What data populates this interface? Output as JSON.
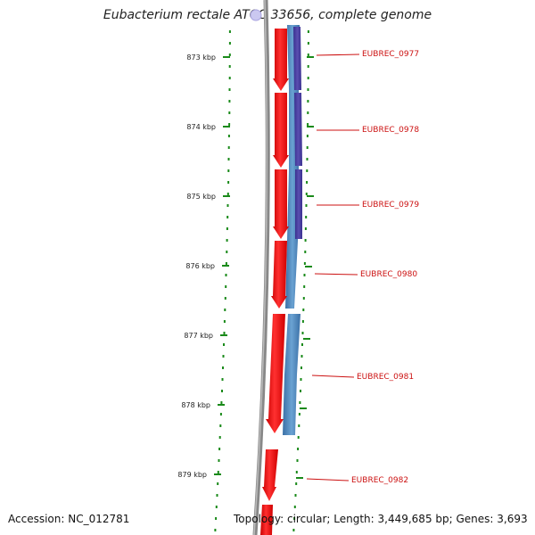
{
  "title": "Eubacterium rectale ATCC 33656, complete genome",
  "accession_label": "Accession: NC_012781",
  "summary_label": "Topology: circular; Length: 3,449,685 bp; Genes: 3,693",
  "scale": {
    "unit": "kbp",
    "ticks": [
      "873 kbp",
      "874 kbp",
      "875 kbp",
      "876 kbp",
      "877 kbp",
      "878 kbp",
      "879 kbp"
    ]
  },
  "genes": [
    {
      "id": "EUBREC_0977",
      "label": "EUBREC_0977"
    },
    {
      "id": "EUBREC_0978",
      "label": "EUBREC_0978"
    },
    {
      "id": "EUBREC_0979",
      "label": "EUBREC_0979"
    },
    {
      "id": "EUBREC_0980",
      "label": "EUBREC_0980"
    },
    {
      "id": "EUBREC_0981",
      "label": "EUBREC_0981"
    },
    {
      "id": "EUBREC_0982",
      "label": "EUBREC_0982"
    }
  ],
  "colors": {
    "gene_arrow": "#ee1111",
    "feature_dark": "#4a3f98",
    "feature_light": "#4f86bb",
    "ticks": "#1a8a1a",
    "label": "#cc1111",
    "backbone": "#888888"
  }
}
